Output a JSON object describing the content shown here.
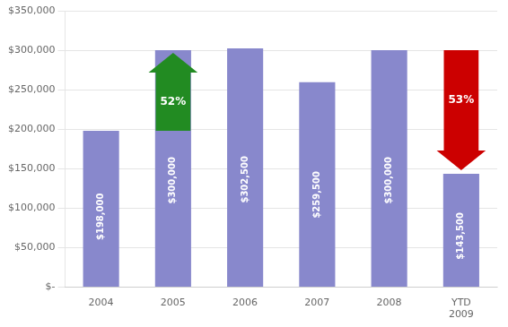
{
  "chart_data": {
    "type": "bar",
    "categories": [
      "2004",
      "2005",
      "2006",
      "2007",
      "2008",
      "YTD\n2009"
    ],
    "values": [
      198000,
      300000,
      302500,
      259500,
      300000,
      143500
    ],
    "value_labels": [
      "$198,000",
      "$300,000",
      "$302,500",
      "$259,500",
      "$300,000",
      "$143,500"
    ],
    "data_labels": true,
    "color": "#8888cc",
    "ylim": [
      0,
      350000
    ],
    "yticks": [
      {
        "value": 0,
        "label": "$-"
      },
      {
        "value": 50000,
        "label": "$50,000"
      },
      {
        "value": 100000,
        "label": "$100,000"
      },
      {
        "value": 150000,
        "label": "$150,000"
      },
      {
        "value": 200000,
        "label": "$200,000"
      },
      {
        "value": 250000,
        "label": "$250,000"
      },
      {
        "value": 300000,
        "label": "$300,000"
      },
      {
        "value": 350000,
        "label": "$350,000"
      }
    ],
    "grid": true,
    "annotations": [
      {
        "text": "52%",
        "x": "2005",
        "color": "#228B22"
      },
      {
        "text": "53%",
        "x": "YTD\n2009",
        "color": "#cc0000"
      }
    ]
  }
}
